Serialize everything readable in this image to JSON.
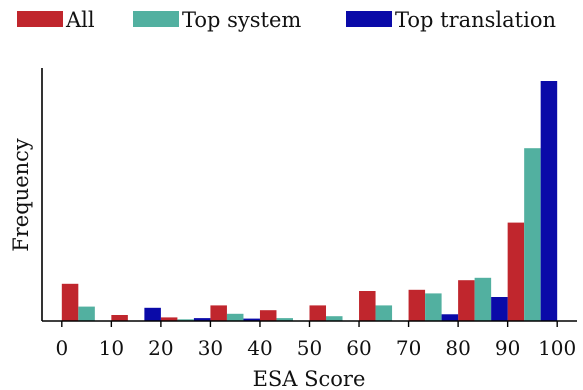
{
  "chart_data": {
    "type": "bar",
    "xlabel": "ESA Score",
    "ylabel": "Frequency",
    "x_ticks": [
      "0",
      "10",
      "20",
      "30",
      "40",
      "50",
      "60",
      "70",
      "80",
      "90",
      "100"
    ],
    "xlim": [
      -4,
      104
    ],
    "ylim": [
      0,
      100
    ],
    "y_ticks_shown": false,
    "legend_position": "top",
    "bin_width": 10,
    "bin_starts": [
      0,
      10,
      20,
      30,
      40,
      50,
      60,
      70,
      80,
      90
    ],
    "series": [
      {
        "name": "All",
        "color": "#c0262d",
        "values": [
          15.5,
          2.5,
          1.5,
          6.5,
          4.5,
          6.5,
          12.5,
          13,
          17,
          41
        ]
      },
      {
        "name": "Top system",
        "color": "#52b0a0",
        "values": [
          6.0,
          0,
          0.7,
          3.0,
          1.2,
          2.0,
          6.5,
          11.5,
          18,
          72
        ]
      },
      {
        "name": "Top translation",
        "color": "#0a0aa8",
        "values": [
          0,
          5.5,
          1.2,
          1.0,
          0,
          0,
          0,
          2.8,
          10,
          100
        ]
      }
    ]
  }
}
